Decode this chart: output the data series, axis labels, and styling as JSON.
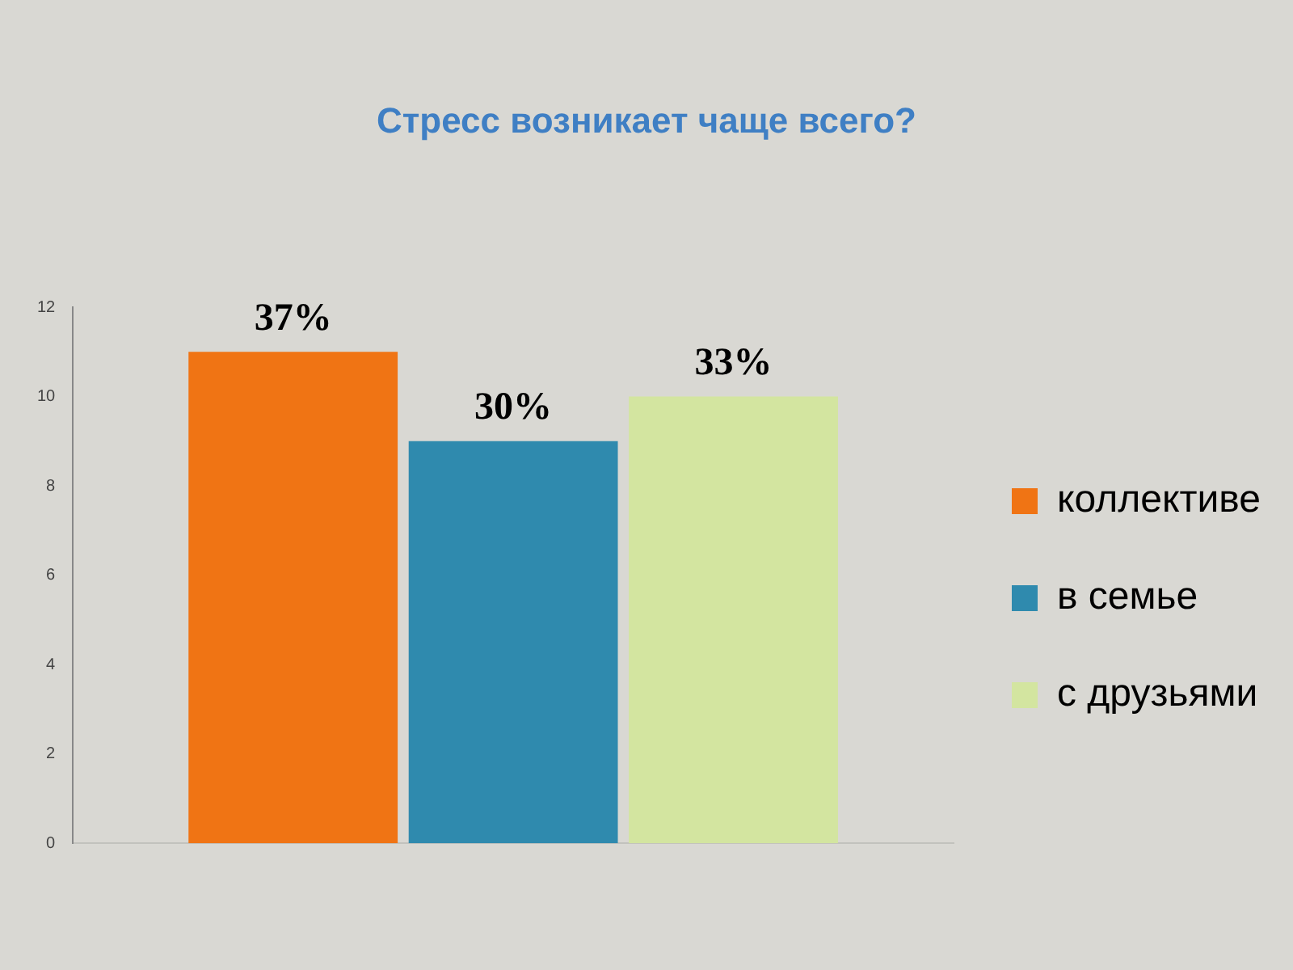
{
  "chart_data": {
    "type": "bar",
    "title": "Стресс возникает чаще всего?",
    "categories": [
      null
    ],
    "series": [
      {
        "name": "коллективе",
        "color": "#f07414",
        "values": [
          11
        ]
      },
      {
        "name": "в семье",
        "color": "#2f8aae",
        "values": [
          9
        ]
      },
      {
        "name": "с друзьями",
        "color": "#d3e5a0",
        "values": [
          10
        ]
      }
    ],
    "annotations": [
      {
        "text": "37%",
        "y": 11
      },
      {
        "text": "30%",
        "y": 9
      },
      {
        "text": "33%",
        "y": 10
      }
    ],
    "ylim": [
      0,
      12
    ],
    "yticks": [
      0,
      2,
      4,
      6,
      8,
      10,
      12
    ],
    "grid": false,
    "legend": "right"
  }
}
